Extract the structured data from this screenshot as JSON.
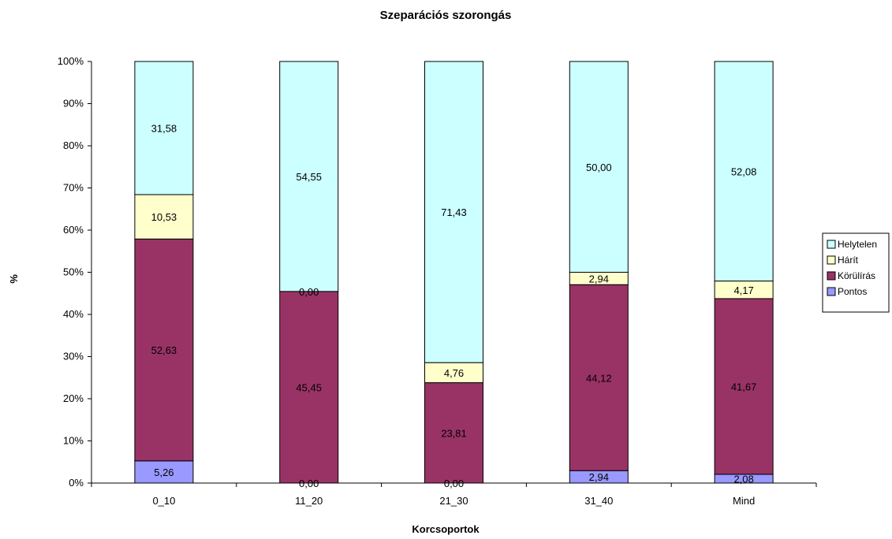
{
  "chart_data": {
    "type": "bar",
    "stacked": true,
    "percent_stacked": true,
    "title": "Szeparációs szorongás",
    "xlabel": "Korcsoportok",
    "ylabel": "%",
    "categories": [
      "0_10",
      "11_20",
      "21_30",
      "31_40",
      "Mind"
    ],
    "ylim": [
      0,
      100
    ],
    "yticks": [
      "0%",
      "10%",
      "20%",
      "30%",
      "40%",
      "50%",
      "60%",
      "70%",
      "80%",
      "90%",
      "100%"
    ],
    "legend_position": "right",
    "grid": false,
    "series": [
      {
        "name": "Pontos",
        "color": "#9999FF",
        "values": [
          5.26,
          0.0,
          0.0,
          2.94,
          2.08
        ],
        "labels": [
          "5,26",
          "0,00",
          "0,00",
          "2,94",
          "2,08"
        ]
      },
      {
        "name": "Körülírás",
        "color": "#993366",
        "values": [
          52.63,
          45.45,
          23.81,
          44.12,
          41.67
        ],
        "labels": [
          "52,63",
          "45,45",
          "23,81",
          "44,12",
          "41,67"
        ]
      },
      {
        "name": "Hárít",
        "color": "#FFFFCC",
        "values": [
          10.53,
          0.0,
          4.76,
          2.94,
          4.17
        ],
        "labels": [
          "10,53",
          "0,00",
          "4,76",
          "2,94",
          "4,17"
        ]
      },
      {
        "name": "Helytelen",
        "color": "#CCFFFF",
        "values": [
          31.58,
          54.55,
          71.43,
          50.0,
          52.08
        ],
        "labels": [
          "31,58",
          "54,55",
          "71,43",
          "50,00",
          "52,08"
        ]
      }
    ],
    "legend_order": [
      "Helytelen",
      "Hárít",
      "Körülírás",
      "Pontos"
    ]
  }
}
